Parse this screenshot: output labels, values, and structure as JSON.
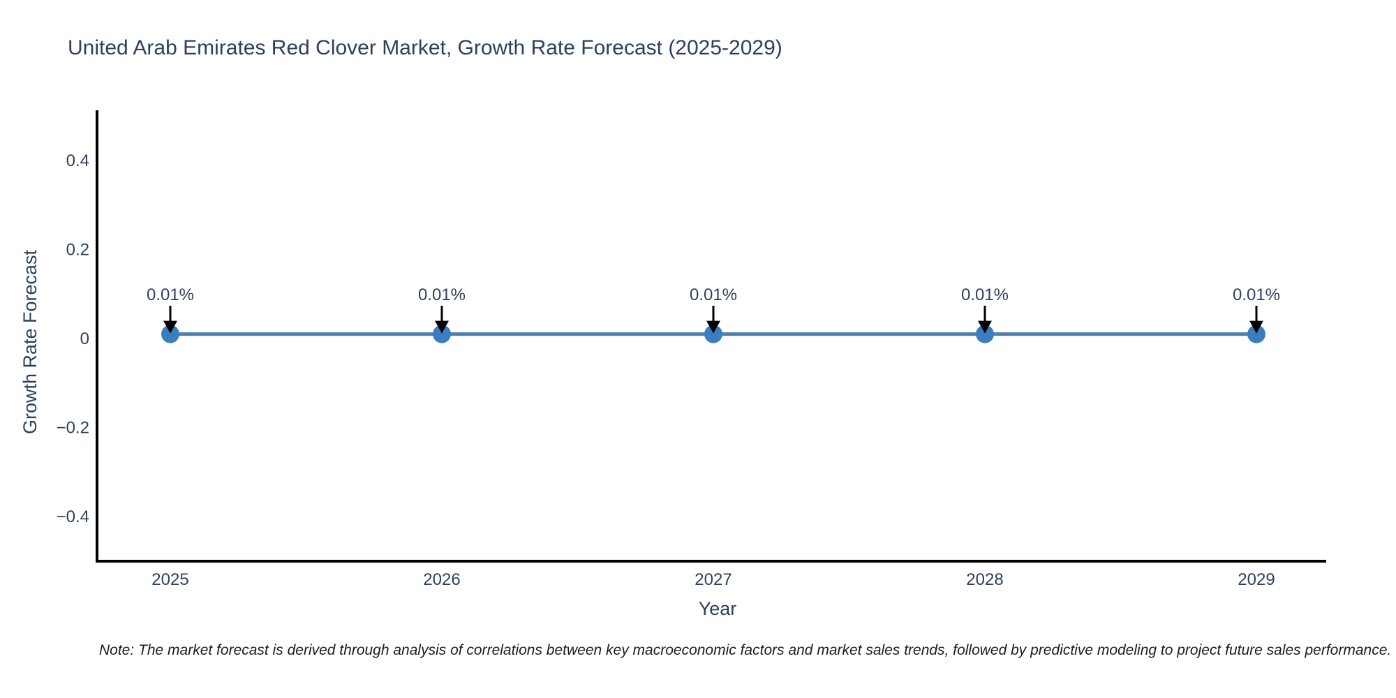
{
  "note": "Note: The market forecast is derived through analysis of correlations between key macroeconomic factors and market sales trends, followed by predictive modeling to project future sales performance.",
  "chart_data": {
    "type": "line",
    "title": "United Arab Emirates Red Clover Market, Growth Rate Forecast (2025-2029)",
    "xlabel": "Year",
    "ylabel": "Growth Rate Forecast",
    "categories": [
      "2025",
      "2026",
      "2027",
      "2028",
      "2029"
    ],
    "series": [
      {
        "name": "Growth Rate Forecast",
        "values": [
          0.01,
          0.01,
          0.01,
          0.01,
          0.01
        ]
      }
    ],
    "point_labels": [
      "0.01%",
      "0.01%",
      "0.01%",
      "0.01%",
      "0.01%"
    ],
    "yticks": [
      0.4,
      0.2,
      0,
      -0.2,
      -0.4
    ],
    "ylim": [
      -0.51,
      0.51
    ],
    "grid": false,
    "legend_position": "none",
    "colors": {
      "line": "#4e81ad",
      "marker": "#3a7ec0",
      "text": "#2d3f5e",
      "axis": "#000000",
      "arrow": "#000000",
      "background": "#ffffff"
    }
  }
}
